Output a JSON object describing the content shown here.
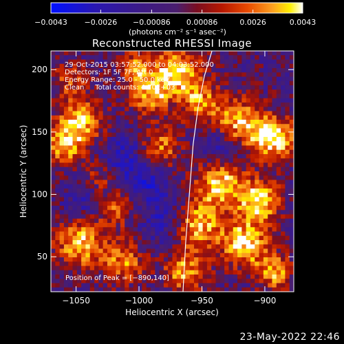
{
  "chart_data": {
    "type": "heatmap",
    "title": "Reconstructed RHESSI Image",
    "xlabel": "Heliocentric X (arcsec)",
    "ylabel": "Heliocentric Y (arcsec)",
    "xlim": [
      -1070,
      -877
    ],
    "ylim": [
      22,
      215
    ],
    "x_ticks": [
      -1050,
      -1000,
      -950,
      -900
    ],
    "x_tick_labels": [
      "−1050",
      "−1000",
      "−950",
      "−900"
    ],
    "y_ticks": [
      50,
      100,
      150,
      200
    ],
    "y_tick_labels": [
      "50",
      "100",
      "150",
      "200"
    ],
    "colorbar": {
      "min": -0.0043,
      "max": 0.0043,
      "tick_values": [
        -0.0043,
        -0.0026,
        -0.00086,
        0.00086,
        0.0026,
        0.0043
      ],
      "tick_labels": [
        "−0.0043",
        "−0.0026",
        "−0.00086",
        "0.00086",
        "0.0026",
        "0.0043"
      ],
      "unit_label": "(photons cm⁻² s⁻¹ asec⁻²)"
    },
    "annotations": [
      "29-Oct-2015 03:57:52.000 to 04:03:52.000",
      "Detectors: 1F 5F 7F, Att 0",
      "Energy Range: 25.0 - 50.0 keV",
      "Clean     Total counts: 4.70E+03"
    ],
    "peak_label": "Position of Peak = [−890,140]",
    "limb_curve_x": [
      -965,
      -963,
      -960,
      -957,
      -953,
      -948,
      -942
    ],
    "limb_curve_y": [
      22,
      60,
      100,
      140,
      170,
      195,
      215
    ]
  },
  "footer": {
    "timestamp": "23-May-2022 22:46"
  },
  "colors": {
    "background": "#000000",
    "text": "#ffffff",
    "colormap": [
      "#0010ff",
      "#1f14c0",
      "#3c1a86",
      "#4a1e6e",
      "#6a1038",
      "#a81400",
      "#dc3a00",
      "#fa8010",
      "#fff000",
      "#ffffff"
    ]
  }
}
